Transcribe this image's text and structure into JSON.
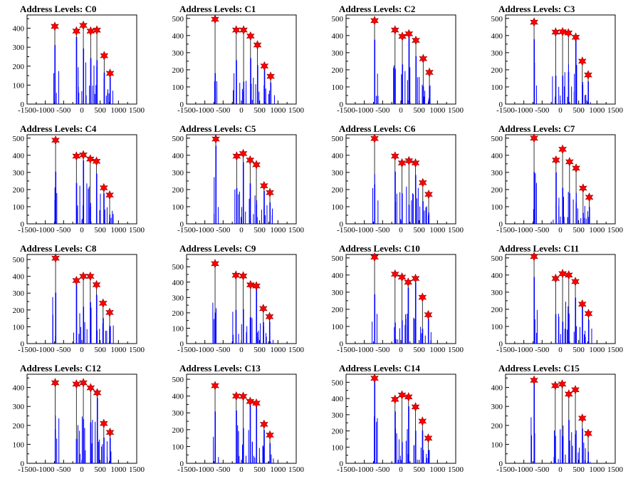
{
  "chart_data": [
    {
      "type": "bar",
      "title": "Address Levels: C0",
      "ylim": [
        0,
        470
      ],
      "yticks": [
        100,
        200,
        300,
        400
      ],
      "xticks": [
        -1500,
        -1000,
        -500,
        0,
        500,
        1000,
        1500
      ],
      "xlim": [
        -1500,
        1500
      ],
      "peaks": [
        {
          "x": -740,
          "y": 410
        },
        {
          "x": -150,
          "y": 385
        },
        {
          "x": 40,
          "y": 415
        },
        {
          "x": 240,
          "y": 385
        },
        {
          "x": 410,
          "y": 390
        },
        {
          "x": 610,
          "y": 255
        },
        {
          "x": 770,
          "y": 162
        }
      ]
    },
    {
      "type": "bar",
      "title": "Address Levels: C1",
      "ylim": [
        0,
        520
      ],
      "yticks": [
        100,
        200,
        300,
        400,
        500
      ],
      "xticks": [
        -1500,
        -1000,
        -500,
        0,
        500,
        1000,
        1500
      ],
      "xlim": [
        -1500,
        1500
      ],
      "peaks": [
        {
          "x": -720,
          "y": 495
        },
        {
          "x": -140,
          "y": 432
        },
        {
          "x": 60,
          "y": 432
        },
        {
          "x": 250,
          "y": 397
        },
        {
          "x": 440,
          "y": 345
        },
        {
          "x": 630,
          "y": 222
        },
        {
          "x": 800,
          "y": 162
        }
      ]
    },
    {
      "type": "bar",
      "title": "Address Levels: C2",
      "ylim": [
        0,
        520
      ],
      "yticks": [
        100,
        200,
        300,
        400,
        500
      ],
      "xticks": [
        -1500,
        -1000,
        -500,
        0,
        500,
        1000,
        1500
      ],
      "xlim": [
        -1500,
        1500
      ],
      "peaks": [
        {
          "x": -720,
          "y": 487
        },
        {
          "x": -160,
          "y": 432
        },
        {
          "x": 40,
          "y": 395
        },
        {
          "x": 220,
          "y": 410
        },
        {
          "x": 410,
          "y": 372
        },
        {
          "x": 610,
          "y": 265
        },
        {
          "x": 780,
          "y": 185
        }
      ]
    },
    {
      "type": "bar",
      "title": "Address Levels: C3",
      "ylim": [
        0,
        520
      ],
      "yticks": [
        100,
        200,
        300,
        400,
        500
      ],
      "xticks": [
        -1500,
        -1000,
        -500,
        0,
        500,
        1000,
        1500
      ],
      "xlim": [
        -1500,
        1500
      ],
      "peaks": [
        {
          "x": -720,
          "y": 478
        },
        {
          "x": -130,
          "y": 420
        },
        {
          "x": 60,
          "y": 422
        },
        {
          "x": 220,
          "y": 415
        },
        {
          "x": 420,
          "y": 390
        },
        {
          "x": 600,
          "y": 250
        },
        {
          "x": 760,
          "y": 170
        }
      ]
    },
    {
      "type": "bar",
      "title": "Address Levels: C4",
      "ylim": [
        0,
        520
      ],
      "yticks": [
        100,
        200,
        300,
        400,
        500
      ],
      "xticks": [
        -1500,
        -1000,
        -500,
        0,
        500,
        1000,
        1500
      ],
      "xlim": [
        -1500,
        1500
      ],
      "peaks": [
        {
          "x": -720,
          "y": 488
        },
        {
          "x": -150,
          "y": 395
        },
        {
          "x": 40,
          "y": 402
        },
        {
          "x": 230,
          "y": 378
        },
        {
          "x": 400,
          "y": 365
        },
        {
          "x": 600,
          "y": 210
        },
        {
          "x": 760,
          "y": 168
        }
      ]
    },
    {
      "type": "bar",
      "title": "Address Levels: C5",
      "ylim": [
        0,
        520
      ],
      "yticks": [
        100,
        200,
        300,
        400,
        500
      ],
      "xticks": [
        -1500,
        -1000,
        -500,
        0,
        500,
        1000,
        1500
      ],
      "xlim": [
        -1500,
        1500
      ],
      "peaks": [
        {
          "x": -700,
          "y": 495
        },
        {
          "x": -130,
          "y": 395
        },
        {
          "x": 50,
          "y": 410
        },
        {
          "x": 240,
          "y": 372
        },
        {
          "x": 410,
          "y": 345
        },
        {
          "x": 620,
          "y": 222
        },
        {
          "x": 780,
          "y": 182
        }
      ]
    },
    {
      "type": "bar",
      "title": "Address Levels: C6",
      "ylim": [
        0,
        520
      ],
      "yticks": [
        100,
        200,
        300,
        400,
        500
      ],
      "xticks": [
        -1500,
        -1000,
        -500,
        0,
        500,
        1000,
        1500
      ],
      "xlim": [
        -1500,
        1500
      ],
      "peaks": [
        {
          "x": -720,
          "y": 498
        },
        {
          "x": -160,
          "y": 395
        },
        {
          "x": 30,
          "y": 355
        },
        {
          "x": 220,
          "y": 368
        },
        {
          "x": 400,
          "y": 355
        },
        {
          "x": 600,
          "y": 240
        },
        {
          "x": 760,
          "y": 172
        }
      ]
    },
    {
      "type": "bar",
      "title": "Address Levels: C7",
      "ylim": [
        0,
        520
      ],
      "yticks": [
        100,
        200,
        300,
        400,
        500
      ],
      "xticks": [
        -1500,
        -1000,
        -500,
        0,
        500,
        1000,
        1500
      ],
      "xlim": [
        -1500,
        1500
      ],
      "peaks": [
        {
          "x": -720,
          "y": 500
        },
        {
          "x": -120,
          "y": 372
        },
        {
          "x": 60,
          "y": 435
        },
        {
          "x": 250,
          "y": 362
        },
        {
          "x": 430,
          "y": 325
        },
        {
          "x": 620,
          "y": 208
        },
        {
          "x": 790,
          "y": 155
        }
      ]
    },
    {
      "type": "bar",
      "title": "Address Levels: C8",
      "ylim": [
        0,
        530
      ],
      "yticks": [
        100,
        200,
        300,
        400,
        500
      ],
      "xticks": [
        -1500,
        -1000,
        -500,
        0,
        500,
        1000,
        1500
      ],
      "xlim": [
        -1500,
        1500
      ],
      "peaks": [
        {
          "x": -720,
          "y": 508
        },
        {
          "x": -150,
          "y": 375
        },
        {
          "x": 40,
          "y": 400
        },
        {
          "x": 230,
          "y": 400
        },
        {
          "x": 400,
          "y": 350
        },
        {
          "x": 580,
          "y": 240
        },
        {
          "x": 760,
          "y": 185
        }
      ]
    },
    {
      "type": "bar",
      "title": "Address Levels: C9",
      "ylim": [
        0,
        580
      ],
      "yticks": [
        100,
        200,
        300,
        400,
        500
      ],
      "xticks": [
        -1500,
        -1000,
        -500,
        0,
        500,
        1000,
        1500
      ],
      "xlim": [
        -1500,
        1500
      ],
      "peaks": [
        {
          "x": -720,
          "y": 520
        },
        {
          "x": -150,
          "y": 445
        },
        {
          "x": 50,
          "y": 440
        },
        {
          "x": 250,
          "y": 382
        },
        {
          "x": 410,
          "y": 375
        },
        {
          "x": 600,
          "y": 228
        },
        {
          "x": 770,
          "y": 175
        }
      ]
    },
    {
      "type": "bar",
      "title": "Address Levels: C10",
      "ylim": [
        0,
        520
      ],
      "yticks": [
        100,
        200,
        300,
        400,
        500
      ],
      "xticks": [
        -1500,
        -1000,
        -500,
        0,
        500,
        1000,
        1500
      ],
      "xlim": [
        -1500,
        1500
      ],
      "peaks": [
        {
          "x": -720,
          "y": 505
        },
        {
          "x": -160,
          "y": 405
        },
        {
          "x": 30,
          "y": 388
        },
        {
          "x": 200,
          "y": 358
        },
        {
          "x": 400,
          "y": 380
        },
        {
          "x": 590,
          "y": 270
        },
        {
          "x": 750,
          "y": 168
        }
      ]
    },
    {
      "type": "bar",
      "title": "Address Levels: C11",
      "ylim": [
        0,
        520
      ],
      "yticks": [
        100,
        200,
        300,
        400,
        500
      ],
      "xticks": [
        -1500,
        -1000,
        -500,
        0,
        500,
        1000,
        1500
      ],
      "xlim": [
        -1500,
        1500
      ],
      "peaks": [
        {
          "x": -720,
          "y": 508
        },
        {
          "x": -130,
          "y": 380
        },
        {
          "x": 60,
          "y": 408
        },
        {
          "x": 230,
          "y": 400
        },
        {
          "x": 410,
          "y": 362
        },
        {
          "x": 600,
          "y": 230
        },
        {
          "x": 770,
          "y": 175
        }
      ]
    },
    {
      "type": "bar",
      "title": "Address Levels: C12",
      "ylim": [
        0,
        470
      ],
      "yticks": [
        100,
        200,
        300,
        400
      ],
      "xticks": [
        -1500,
        -1000,
        -500,
        0,
        500,
        1000,
        1500
      ],
      "xlim": [
        -1500,
        1500
      ],
      "peaks": [
        {
          "x": -730,
          "y": 425
        },
        {
          "x": -150,
          "y": 418
        },
        {
          "x": 40,
          "y": 425
        },
        {
          "x": 240,
          "y": 398
        },
        {
          "x": 420,
          "y": 372
        },
        {
          "x": 600,
          "y": 210
        },
        {
          "x": 770,
          "y": 163
        }
      ]
    },
    {
      "type": "bar",
      "title": "Address Levels: C13",
      "ylim": [
        0,
        530
      ],
      "yticks": [
        100,
        200,
        300,
        400,
        500
      ],
      "xticks": [
        -1500,
        -1000,
        -500,
        0,
        500,
        1000,
        1500
      ],
      "xlim": [
        -1500,
        1500
      ],
      "peaks": [
        {
          "x": -720,
          "y": 462
        },
        {
          "x": -140,
          "y": 400
        },
        {
          "x": 50,
          "y": 398
        },
        {
          "x": 240,
          "y": 368
        },
        {
          "x": 410,
          "y": 358
        },
        {
          "x": 620,
          "y": 232
        },
        {
          "x": 780,
          "y": 168
        }
      ]
    },
    {
      "type": "bar",
      "title": "Address Levels: C14",
      "ylim": [
        0,
        550
      ],
      "yticks": [
        100,
        200,
        300,
        400,
        500
      ],
      "xticks": [
        -1500,
        -1000,
        -500,
        0,
        500,
        1000,
        1500
      ],
      "xlim": [
        -1500,
        1500
      ],
      "peaks": [
        {
          "x": -720,
          "y": 525
        },
        {
          "x": -160,
          "y": 395
        },
        {
          "x": 30,
          "y": 422
        },
        {
          "x": 210,
          "y": 410
        },
        {
          "x": 400,
          "y": 348
        },
        {
          "x": 590,
          "y": 260
        },
        {
          "x": 750,
          "y": 155
        }
      ]
    },
    {
      "type": "bar",
      "title": "Address Levels: C15",
      "ylim": [
        0,
        470
      ],
      "yticks": [
        100,
        200,
        300,
        400
      ],
      "xticks": [
        -1500,
        -1000,
        -500,
        0,
        500,
        1000,
        1500
      ],
      "xlim": [
        -1500,
        1500
      ],
      "peaks": [
        {
          "x": -720,
          "y": 438
        },
        {
          "x": -140,
          "y": 410
        },
        {
          "x": 50,
          "y": 418
        },
        {
          "x": 230,
          "y": 365
        },
        {
          "x": 410,
          "y": 388
        },
        {
          "x": 600,
          "y": 238
        },
        {
          "x": 760,
          "y": 158
        }
      ]
    }
  ],
  "colors": {
    "bar": "#0000ff",
    "marker": "#ff0000",
    "marker_stroke": "#8b0000",
    "axis": "#000000"
  }
}
